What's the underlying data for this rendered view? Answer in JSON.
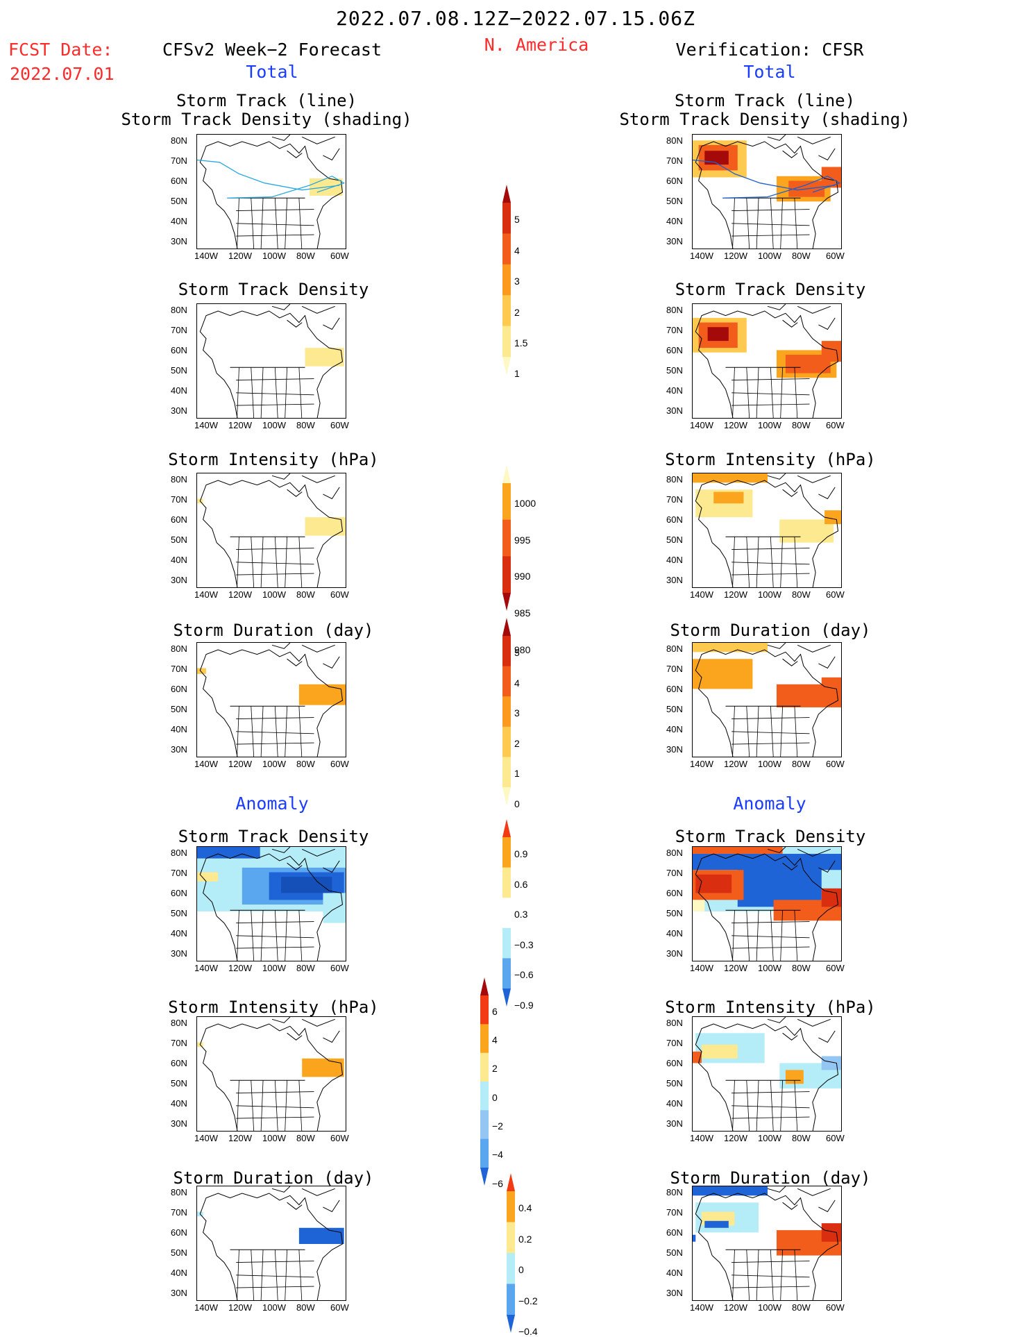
{
  "header": {
    "date_range": "2022.07.08.12Z−2022.07.15.06Z",
    "fcst_label": "FCST Date:",
    "fcst_date": "2022.07.01",
    "region": "N. America",
    "left_title": "CFSv2 Week−2 Forecast",
    "right_title": "Verification: CFSR"
  },
  "sections": {
    "total": "Total",
    "anomaly": "Anomaly"
  },
  "axes": {
    "lat_labels": [
      "80N",
      "70N",
      "60N",
      "50N",
      "40N",
      "30N"
    ],
    "lon_labels": [
      "140W",
      "120W",
      "100W",
      "80W",
      "60W"
    ]
  },
  "panels": {
    "total_track": "Storm Track (line)",
    "total_track_sub": "Storm Track Density (shading)",
    "total_density": "Storm Track Density",
    "total_intensity": "Storm Intensity (hPa)",
    "total_duration": "Storm Duration (day)",
    "anom_density": "Storm Track Density",
    "anom_intensity": "Storm Intensity (hPa)",
    "anom_duration": "Storm Duration (day)"
  },
  "colorbars": {
    "track_density": {
      "labels": [
        "5",
        "4",
        "3",
        "2",
        "1.5",
        "1"
      ],
      "colors": [
        "#a50a0a",
        "#d92e10",
        "#f35d1c",
        "#fb9a1e",
        "#fdc94f",
        "#fde98f",
        "#fef8c2"
      ]
    },
    "intensity": {
      "labels": [
        "1000",
        "995",
        "990",
        "985",
        "980"
      ],
      "colors": [
        "#fef8c2",
        "#fba51e",
        "#f35d1c",
        "#d92e10",
        "#a50a0a"
      ]
    },
    "duration": {
      "labels": [
        "5",
        "4",
        "3",
        "2",
        "1",
        "0"
      ],
      "colors": [
        "#a50a0a",
        "#d92e10",
        "#f35d1c",
        "#fb9a1e",
        "#fdc94f",
        "#fde98f",
        "#fef8c2"
      ]
    },
    "anom_density": {
      "labels": [
        "0.9",
        "0.6",
        "0.3",
        "−0.3",
        "−0.6",
        "−0.9"
      ],
      "colors": [
        "#f23b14",
        "#fba51e",
        "#fde98f",
        "#ffffff",
        "#b4ecf8",
        "#5aa6ef",
        "#1f64d6"
      ]
    },
    "anom_intensity": {
      "labels": [
        "6",
        "4",
        "2",
        "0",
        "−2",
        "−4",
        "−6"
      ],
      "colors": [
        "#a50a0a",
        "#f23b14",
        "#fba51e",
        "#fde98f",
        "#b4ecf8",
        "#93c6f2",
        "#5aa6ef",
        "#1f64d6"
      ]
    },
    "anom_duration": {
      "labels": [
        "0.4",
        "0.2",
        "0",
        "−0.2",
        "−0.4"
      ],
      "colors": [
        "#f23b14",
        "#fba51e",
        "#fde98f",
        "#b4ecf8",
        "#5aa6ef",
        "#1f64d6"
      ]
    }
  }
}
